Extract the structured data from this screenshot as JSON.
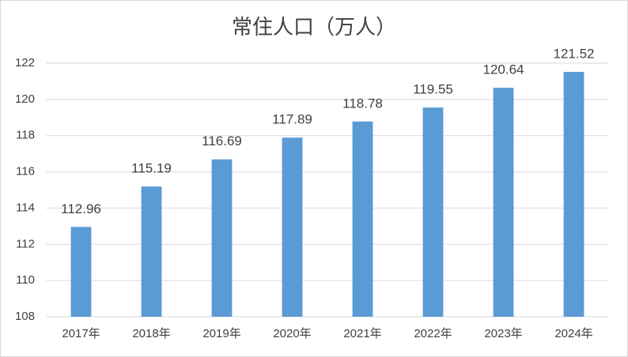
{
  "chart_data": {
    "type": "bar",
    "title": "常住人口（万人）",
    "categories": [
      "2017年",
      "2018年",
      "2019年",
      "2020年",
      "2021年",
      "2022年",
      "2023年",
      "2024年"
    ],
    "values": [
      112.96,
      115.19,
      116.69,
      117.89,
      118.78,
      119.55,
      120.64,
      121.52
    ],
    "color": "#5b9bd5",
    "ylim": [
      108,
      122
    ],
    "yticks": [
      108,
      110,
      112,
      114,
      116,
      118,
      120,
      122
    ],
    "grid": true
  }
}
